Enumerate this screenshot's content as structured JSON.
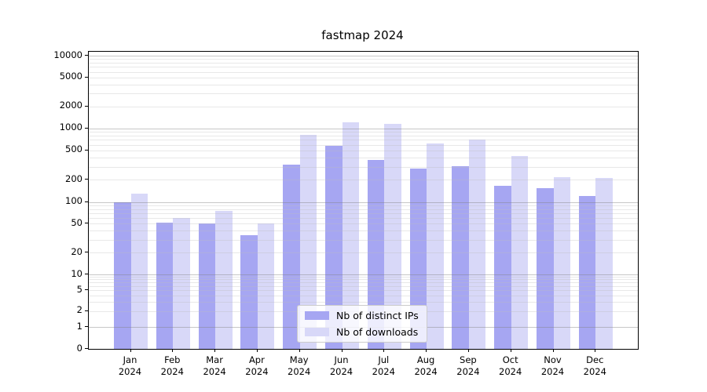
{
  "title": "fastmap 2024",
  "chart_data": {
    "type": "bar",
    "title": "fastmap 2024",
    "categories": [
      "Jan",
      "Feb",
      "Mar",
      "Apr",
      "May",
      "Jun",
      "Jul",
      "Aug",
      "Sep",
      "Oct",
      "Nov",
      "Dec"
    ],
    "year": "2024",
    "series": [
      {
        "name": "Nb of distinct IPs",
        "color": "#a6a6f2",
        "values": [
          100,
          52,
          50,
          35,
          320,
          580,
          370,
          285,
          310,
          165,
          155,
          120
        ]
      },
      {
        "name": "Nb of downloads",
        "color": "#d8d8f8",
        "values": [
          130,
          60,
          75,
          50,
          820,
          1200,
          1150,
          630,
          710,
          420,
          220,
          210
        ]
      }
    ],
    "yscale": "symlog",
    "ylim": [
      0,
      11500
    ],
    "ytick_values": [
      10000,
      5000,
      2000,
      1000,
      500,
      200,
      100,
      50,
      20,
      10,
      5,
      2,
      1,
      0
    ],
    "ytick_labels": [
      "10000",
      "5000",
      "2000",
      "1000",
      "500",
      "200",
      "100",
      "50",
      "20",
      "10",
      "5",
      "2",
      "1",
      "0"
    ],
    "grid": "horizontal, major and minor, drawn over bars",
    "legend_position": "lower center"
  }
}
